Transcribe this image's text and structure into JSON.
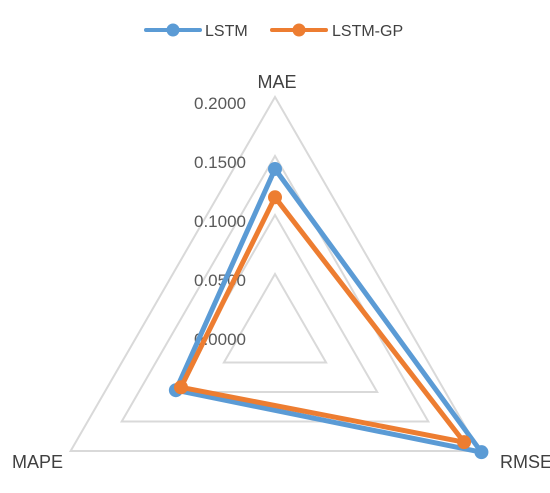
{
  "chart_data": {
    "type": "radar",
    "axes": [
      "MAE",
      "RMSE",
      "MAPE"
    ],
    "ticks": [
      "0.0000",
      "0.0500",
      "0.1000",
      "0.1500",
      "0.2000"
    ],
    "rmin": 0.0,
    "rmax": 0.2,
    "grid": true,
    "legend_position": "top",
    "series": [
      {
        "name": "LSTM",
        "color": "#5B9BD5",
        "values": [
          0.139,
          0.202,
          0.097
        ]
      },
      {
        "name": "LSTM-GP",
        "color": "#ED7D31",
        "values": [
          0.115,
          0.185,
          0.092
        ]
      }
    ]
  }
}
